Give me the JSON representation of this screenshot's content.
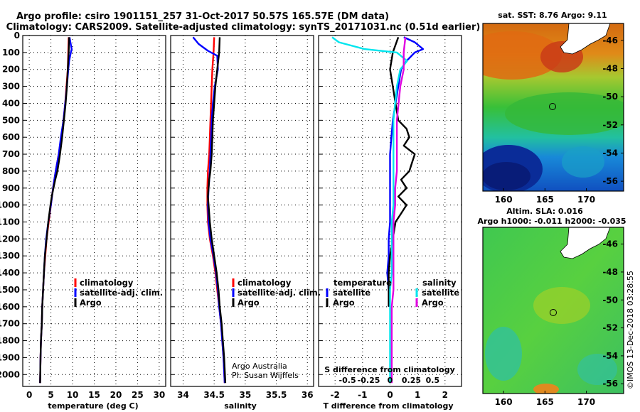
{
  "title": {
    "line1": "Argo profile: csiro 1901151_257 31-Oct-2017 50.57S 165.57E (DM data)",
    "line2": "Climatology: CARS2009. Satellite-adjusted climatology: synTS_20171031.nc (0.51d earlier)"
  },
  "colors": {
    "climatology": "#ff0000",
    "satellite": "#0000ff",
    "argo": "#000000",
    "salinity_satellite": "#00e5ee",
    "salinity_argo": "#e000e0"
  },
  "depth_ticks": [
    "0",
    "100",
    "200",
    "300",
    "400",
    "500",
    "600",
    "700",
    "800",
    "900",
    "1000",
    "1100",
    "1200",
    "1300",
    "1400",
    "1500",
    "1600",
    "1700",
    "1800",
    "1900",
    "2000"
  ],
  "chart_data": [
    {
      "type": "line",
      "name": "temperature",
      "xlabel": "temperature (deg C)",
      "ylabel": "",
      "xlim": [
        -1.5,
        31.5
      ],
      "ylim": [
        2070,
        0
      ],
      "xticks": [
        "0",
        "5",
        "10",
        "15",
        "20",
        "25",
        "30"
      ],
      "grid": true,
      "legend_position": "bottom-right",
      "legend": [
        "climatology",
        "satellite-adj. clim.",
        "Argo"
      ],
      "series": [
        {
          "name": "climatology",
          "color": "#ff0000",
          "depth": [
            10,
            100,
            200,
            300,
            400,
            500,
            600,
            700,
            800,
            900,
            1000,
            1100,
            1200,
            1300,
            1400,
            1500,
            1600,
            1700,
            1800,
            1900,
            2050
          ],
          "values": [
            9.1,
            9.0,
            8.9,
            8.6,
            8.3,
            7.9,
            7.4,
            6.8,
            6.1,
            5.5,
            5.0,
            4.5,
            4.0,
            3.7,
            3.4,
            3.2,
            3.0,
            2.9,
            2.7,
            2.6,
            2.5
          ]
        },
        {
          "name": "satellite-adj. clim.",
          "color": "#0000ff",
          "depth": [
            10,
            40,
            80,
            100,
            150,
            200,
            300,
            400,
            500,
            600,
            700,
            800,
            900,
            1000,
            1100,
            1200,
            1300,
            1400,
            1500,
            1600,
            1700,
            1800,
            1900,
            2050
          ],
          "values": [
            9.3,
            9.5,
            9.8,
            9.6,
            9.2,
            9.0,
            8.7,
            8.3,
            7.9,
            7.3,
            6.8,
            6.1,
            5.5,
            5.0,
            4.4,
            3.9,
            3.6,
            3.4,
            3.2,
            3.0,
            2.9,
            2.7,
            2.6,
            2.5
          ]
        },
        {
          "name": "Argo",
          "color": "#000000",
          "depth": [
            10,
            100,
            200,
            300,
            400,
            500,
            600,
            700,
            750,
            800,
            850,
            900,
            950,
            1000,
            1100,
            1200,
            1300,
            1400,
            1500,
            1600,
            1700,
            1800,
            1900,
            2050
          ],
          "values": [
            9.2,
            9.1,
            8.9,
            8.7,
            8.4,
            8.0,
            7.6,
            7.1,
            6.8,
            6.5,
            6.0,
            5.6,
            5.2,
            4.9,
            4.4,
            4.0,
            3.6,
            3.4,
            3.2,
            3.0,
            2.9,
            2.7,
            2.6,
            2.5
          ]
        }
      ]
    },
    {
      "type": "line",
      "name": "salinity",
      "xlabel": "salinity",
      "ylabel": "",
      "xlim": [
        33.8,
        36.1
      ],
      "ylim": [
        2070,
        0
      ],
      "xticks": [
        "34",
        "34.5",
        "35",
        "35.5",
        "36"
      ],
      "grid": true,
      "legend_position": "bottom-right",
      "legend": [
        "climatology",
        "satellite-adj. clim.",
        "Argo"
      ],
      "annotation": [
        "Argo Australia",
        "PI: Susan Wijffels"
      ],
      "series": [
        {
          "name": "climatology",
          "color": "#ff0000",
          "depth": [
            10,
            100,
            200,
            300,
            400,
            500,
            600,
            700,
            800,
            900,
            1000,
            1100,
            1200,
            1300,
            1400,
            1500,
            1600,
            1700,
            1800,
            1900,
            2050
          ],
          "values": [
            34.5,
            34.49,
            34.47,
            34.46,
            34.45,
            34.44,
            34.43,
            34.42,
            34.4,
            34.39,
            34.39,
            34.4,
            34.43,
            34.48,
            34.52,
            34.55,
            34.58,
            34.61,
            34.63,
            34.65,
            34.67
          ]
        },
        {
          "name": "satellite-adj. clim.",
          "color": "#0000ff",
          "depth": [
            10,
            50,
            90,
            120,
            200,
            300,
            400,
            500,
            600,
            700,
            800,
            900,
            1000,
            1100,
            1200,
            1300,
            1400,
            1500,
            1600,
            1700,
            1800,
            1900,
            2050
          ],
          "values": [
            34.16,
            34.25,
            34.4,
            34.55,
            34.56,
            34.51,
            34.48,
            34.46,
            34.45,
            34.44,
            34.43,
            34.41,
            34.4,
            34.41,
            34.44,
            34.49,
            34.53,
            34.56,
            34.58,
            34.61,
            34.63,
            34.65,
            34.67
          ]
        },
        {
          "name": "Argo",
          "color": "#000000",
          "depth": [
            10,
            100,
            200,
            300,
            400,
            500,
            600,
            700,
            800,
            850,
            900,
            950,
            1000,
            1050,
            1100,
            1200,
            1300,
            1400,
            1500,
            1600,
            1700,
            1800,
            1900,
            2050
          ],
          "values": [
            34.59,
            34.58,
            34.55,
            34.52,
            34.5,
            34.48,
            34.47,
            34.46,
            34.44,
            34.42,
            34.41,
            34.4,
            34.41,
            34.42,
            34.43,
            34.46,
            34.5,
            34.54,
            34.57,
            34.59,
            34.62,
            34.64,
            34.66,
            34.68
          ]
        }
      ]
    },
    {
      "type": "line",
      "name": "difference",
      "xlabel": "T difference from climatology",
      "xlabel2": "S difference from climatology",
      "ylabel": "",
      "xlim": [
        -2.6,
        2.6
      ],
      "ylim": [
        2070,
        0
      ],
      "xticks": [
        "-2",
        "-1",
        "0",
        "1",
        "2"
      ],
      "xticks2": [
        "-0.5",
        "-0.25",
        "0",
        "0.25",
        "0.5"
      ],
      "grid": true,
      "legend_position": "bottom",
      "legend": [
        "temperature",
        "satellite",
        "Argo",
        "salinity",
        "satellite",
        "Argo"
      ],
      "series": [
        {
          "name": "satellite",
          "color": "#0000ff",
          "depth": [
            10,
            40,
            80,
            100,
            150,
            200,
            300,
            400,
            500,
            600,
            700,
            800,
            900,
            1000,
            1100,
            1200,
            1300,
            1400,
            1500,
            1600
          ],
          "values": [
            0.5,
            0.9,
            1.2,
            0.9,
            0.6,
            0.4,
            0.3,
            0.2,
            0.1,
            0.05,
            0.0,
            0.0,
            0.0,
            0.0,
            0.0,
            -0.05,
            -0.05,
            -0.1,
            -0.05,
            -0.03
          ]
        },
        {
          "name": "Argo",
          "color": "#000000",
          "depth": [
            10,
            100,
            200,
            300,
            400,
            500,
            550,
            600,
            650,
            700,
            750,
            800,
            850,
            900,
            950,
            1000,
            1050,
            1100,
            1200,
            1300,
            1400,
            1500,
            1600
          ],
          "values": [
            0.3,
            0.1,
            0.0,
            0.1,
            0.2,
            0.3,
            0.6,
            0.7,
            0.5,
            0.9,
            0.8,
            0.7,
            0.4,
            0.6,
            0.3,
            0.6,
            0.4,
            0.2,
            0.1,
            0.0,
            -0.05,
            -0.05,
            -0.05
          ]
        },
        {
          "name": "satellite",
          "color": "#00e5ee",
          "depth": [
            10,
            40,
            80,
            100,
            150,
            200,
            300,
            400,
            500,
            600,
            700,
            800,
            900,
            1000,
            1100,
            1200,
            1300,
            1400,
            1500,
            1600,
            1700,
            1800,
            1900,
            2050
          ],
          "values": [
            -0.34,
            -0.3,
            -0.15,
            0.04,
            0.1,
            0.06,
            0.04,
            0.03,
            0.02,
            0.02,
            0.02,
            0.02,
            0.02,
            0.02,
            0.01,
            0.01,
            0.01,
            0.01,
            0.0,
            0.0,
            0.0,
            0.0,
            0.0,
            0.0
          ]
        },
        {
          "name": "Argo",
          "color": "#e000e0",
          "depth": [
            10,
            100,
            200,
            300,
            400,
            500,
            600,
            700,
            800,
            900,
            1000,
            1100,
            1200,
            1300,
            1400,
            1500,
            1600,
            1700,
            1800,
            1900,
            2050
          ],
          "values": [
            0.09,
            0.08,
            0.08,
            0.06,
            0.05,
            0.04,
            0.04,
            0.04,
            0.04,
            0.03,
            0.03,
            0.02,
            0.02,
            0.02,
            0.02,
            0.02,
            0.01,
            0.01,
            0.01,
            0.01,
            0.01
          ]
        }
      ]
    },
    {
      "type": "heatmap",
      "name": "sst_map",
      "title": "sat. SST: 8.76 Argo: 9.11",
      "xlim": [
        157.5,
        174.5
      ],
      "ylim": [
        -56.7,
        -44.8
      ],
      "xticks": [
        "160",
        "165",
        "170"
      ],
      "yticks": [
        "-46",
        "-48",
        "-50",
        "-52",
        "-54",
        "-56"
      ],
      "float_position": {
        "lon": 165.57,
        "lat": -50.57
      }
    },
    {
      "type": "heatmap",
      "name": "sla_map",
      "title": "Altim. SLA: 0.016",
      "subtitle": "Argo h1000: -0.011 h2000: -0.035",
      "xlim": [
        157.5,
        174.5
      ],
      "ylim": [
        -56.7,
        -44.8
      ],
      "xticks": [
        "160",
        "165",
        "170"
      ],
      "yticks": [
        "-46",
        "-48",
        "-50",
        "-52",
        "-54",
        "-56"
      ],
      "float_position": {
        "lon": 165.57,
        "lat": -50.57
      }
    }
  ],
  "legends": {
    "temperature": [
      "climatology",
      "satellite-adj. clim.",
      "Argo"
    ],
    "salinity": [
      "climatology",
      "satellite-adj. clim.",
      "Argo"
    ],
    "difference_temperature": {
      "header": "temperature",
      "items": [
        "satellite",
        "Argo"
      ]
    },
    "difference_salinity": {
      "header": "salinity",
      "items": [
        "satellite",
        "Argo"
      ]
    }
  },
  "annotation": {
    "line1": "Argo Australia",
    "line2": "PI: Susan Wijffels"
  },
  "watermark": "©IMOS 13-Dec-2018 03:28:55"
}
